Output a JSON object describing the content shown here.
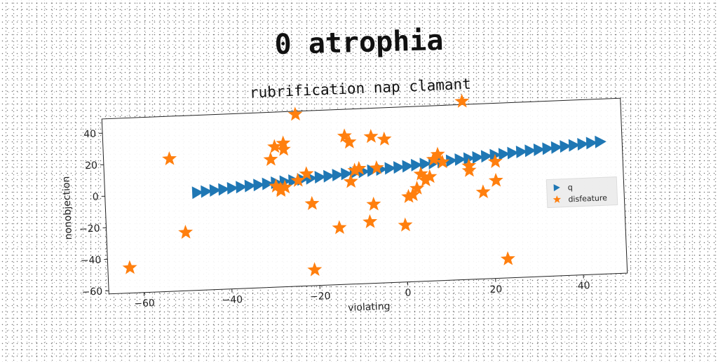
{
  "main_title": "0 atrophia",
  "chart_data": {
    "type": "scatter",
    "title": "rubrification nap clamant",
    "xlabel": "violating",
    "ylabel": "nonobjection",
    "xlim": [
      -68,
      50
    ],
    "ylim": [
      -62,
      49
    ],
    "xticks": [
      -60,
      -40,
      -20,
      0,
      20,
      40
    ],
    "yticks": [
      -60,
      -40,
      -20,
      0,
      20,
      40
    ],
    "grid": false,
    "legend_position": "center-right",
    "series": [
      {
        "name": "q",
        "marker": "triangle-right",
        "color": "#1f77b4",
        "x": [
          -47,
          -45,
          -43,
          -41,
          -39,
          -37,
          -35,
          -33,
          -31,
          -29,
          -27,
          -25,
          -23,
          -21,
          -19,
          -17,
          -15,
          -13,
          -11,
          -9,
          -7,
          -5,
          -3,
          -1,
          1,
          3,
          5,
          7,
          9,
          11,
          13,
          15,
          17,
          19,
          21,
          23,
          25,
          27,
          29,
          31,
          33,
          35,
          37,
          39,
          41,
          43,
          45
        ],
        "y": [
          0,
          0.5,
          1,
          1.4,
          1.9,
          2.4,
          2.9,
          3.3,
          3.8,
          4.3,
          4.8,
          5.2,
          5.7,
          6.2,
          6.7,
          7.1,
          7.6,
          8.1,
          8.6,
          9,
          9.5,
          10,
          10.5,
          10.9,
          11.4,
          11.9,
          12.4,
          12.8,
          13.3,
          13.8,
          14.3,
          14.7,
          15.2,
          15.7,
          16.2,
          16.6,
          17.1,
          17.6,
          18.1,
          18.5,
          19,
          19.5,
          20,
          20.4,
          20.9,
          21.4,
          21.9
        ]
      },
      {
        "name": "disfeature",
        "marker": "star",
        "color": "#ff7f0e",
        "x": [
          -63,
          -53,
          -50,
          -30,
          -29,
          -29,
          -28,
          -28,
          -27,
          -27,
          -27,
          -24,
          -24,
          -22,
          -21,
          -21,
          -15,
          -13,
          -12,
          -12,
          -11,
          -10,
          -8,
          -7,
          -7,
          -6,
          -4,
          0,
          1,
          2,
          3,
          4,
          5,
          6,
          7,
          8,
          9,
          14,
          15,
          15,
          18,
          21,
          21,
          23
        ],
        "y": [
          -46,
          22,
          -25,
          19,
          2,
          27,
          -1,
          0,
          29,
          25,
          1,
          47,
          5,
          9,
          -52,
          -10,
          -26,
          32,
          28,
          3,
          10,
          11,
          -23,
          31,
          -12,
          11,
          29,
          -26,
          -8,
          -7,
          -3,
          6,
          2,
          4,
          15,
          18,
          13,
          51,
          7,
          10,
          -7,
          12,
          0,
          -50
        ]
      }
    ]
  }
}
